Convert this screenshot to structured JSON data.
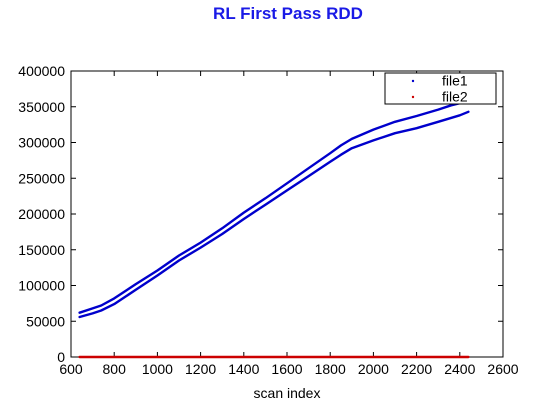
{
  "chart_data": {
    "type": "scatter",
    "title": "RL First Pass RDD",
    "xlabel": "scan index",
    "ylabel": "",
    "xlim": [
      600,
      2600
    ],
    "ylim": [
      0,
      400000
    ],
    "xticks": [
      600,
      800,
      1000,
      1200,
      1400,
      1600,
      1800,
      2000,
      2200,
      2400,
      2600
    ],
    "yticks": [
      0,
      50000,
      100000,
      150000,
      200000,
      250000,
      300000,
      350000,
      400000
    ],
    "grid": false,
    "legend_position": "top-right",
    "series": [
      {
        "name": "file1",
        "color": "#0000cc",
        "points": [
          [
            640,
            62000
          ],
          [
            700,
            68000
          ],
          [
            740,
            72000
          ],
          [
            800,
            82000
          ],
          [
            900,
            102000
          ],
          [
            1000,
            121000
          ],
          [
            1100,
            142000
          ],
          [
            1200,
            160000
          ],
          [
            1300,
            180000
          ],
          [
            1400,
            202000
          ],
          [
            1500,
            222000
          ],
          [
            1600,
            243000
          ],
          [
            1700,
            264000
          ],
          [
            1800,
            285000
          ],
          [
            1850,
            296000
          ],
          [
            1900,
            305000
          ],
          [
            2000,
            318000
          ],
          [
            2100,
            329000
          ],
          [
            2200,
            337000
          ],
          [
            2300,
            346000
          ],
          [
            2360,
            352000
          ],
          [
            2400,
            355000
          ]
        ]
      },
      {
        "name": "",
        "color": "#0000cc",
        "points": [
          [
            640,
            56000
          ],
          [
            700,
            61000
          ],
          [
            740,
            65000
          ],
          [
            800,
            74000
          ],
          [
            900,
            94000
          ],
          [
            1000,
            114000
          ],
          [
            1100,
            135000
          ],
          [
            1200,
            153000
          ],
          [
            1300,
            172000
          ],
          [
            1400,
            193000
          ],
          [
            1500,
            213000
          ],
          [
            1600,
            233000
          ],
          [
            1700,
            253000
          ],
          [
            1800,
            273000
          ],
          [
            1850,
            283000
          ],
          [
            1900,
            292000
          ],
          [
            2000,
            303000
          ],
          [
            2100,
            313000
          ],
          [
            2200,
            320000
          ],
          [
            2300,
            329000
          ],
          [
            2400,
            338000
          ],
          [
            2440,
            343000
          ]
        ]
      },
      {
        "name": "file2",
        "color": "#cc0000",
        "points": [
          [
            640,
            0
          ],
          [
            2440,
            0
          ]
        ]
      }
    ]
  }
}
